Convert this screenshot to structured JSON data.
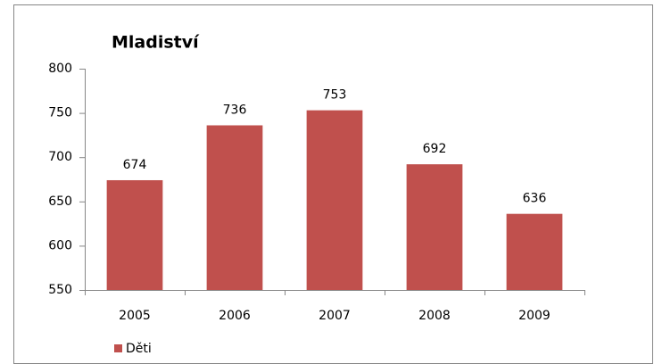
{
  "chart_data": {
    "type": "bar",
    "title": "Mladiství",
    "categories": [
      "2005",
      "2006",
      "2007",
      "2008",
      "2009"
    ],
    "series": [
      {
        "name": "Děti",
        "color": "#c0504d",
        "values": [
          674,
          736,
          753,
          692,
          636
        ]
      }
    ],
    "ylim": [
      550,
      800
    ],
    "yticks": [
      550,
      600,
      650,
      700,
      750,
      800
    ],
    "grid": false,
    "legend": "bottom-left"
  }
}
